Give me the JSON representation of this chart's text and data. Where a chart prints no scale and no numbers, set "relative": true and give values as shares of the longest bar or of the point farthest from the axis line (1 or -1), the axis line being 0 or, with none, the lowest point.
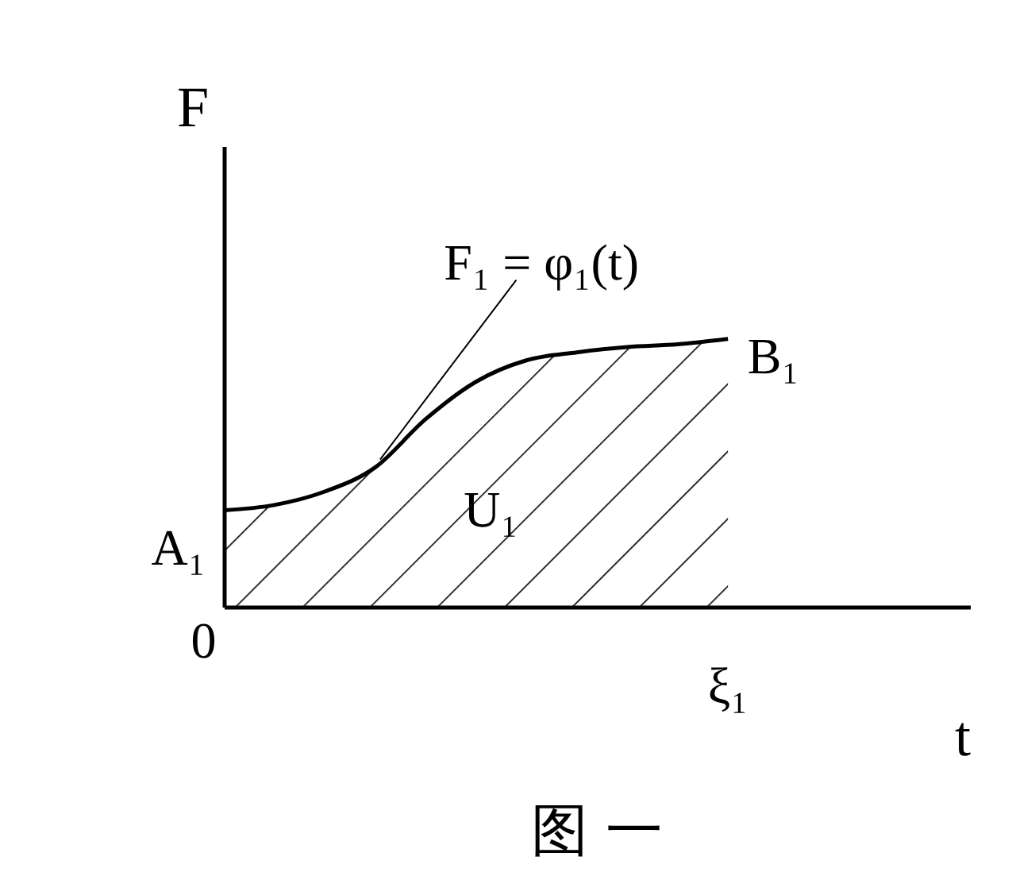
{
  "chart_data": {
    "type": "area",
    "relative": true,
    "title": "图 一",
    "xlabel": "t",
    "ylabel": "F",
    "color": "#000000",
    "categories": [
      null,
      null,
      null,
      null,
      null,
      null,
      null,
      null,
      null,
      null,
      null
    ],
    "values": [
      0.36,
      0.38,
      0.43,
      0.52,
      0.7,
      0.84,
      0.92,
      0.95,
      0.97,
      0.98,
      1
    ],
    "annotations": [
      "F₁ = φ₁(t)",
      "A₁",
      "B₁",
      "U₁",
      "0",
      "ξ₁"
    ],
    "grid": false
  }
}
